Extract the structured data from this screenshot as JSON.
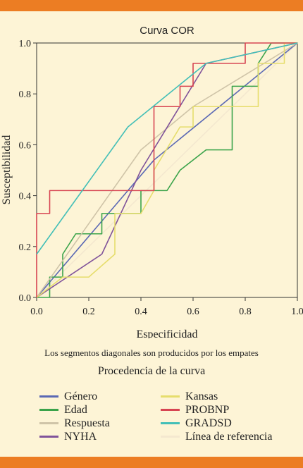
{
  "chart_data": {
    "type": "line",
    "title": "Curva COR",
    "xlabel": "Especificidad",
    "ylabel": "Susceptibilidad",
    "xlim": [
      0,
      1
    ],
    "ylim": [
      0,
      1
    ],
    "x_ticks": [
      "0.0",
      "0.2",
      "0.4",
      "0.6",
      "0.8",
      "1.0"
    ],
    "y_ticks": [
      "0.0",
      "0.2",
      "0.4",
      "0.6",
      "0.8",
      "1.0"
    ],
    "note": "Los segmentos diagonales son producidos por los empates",
    "legend_title": "Procedencia de la curva",
    "legend_placement": "bottom",
    "series": [
      {
        "name": "Género",
        "color": "#5a68b4",
        "x": [
          0,
          0.45,
          1.0
        ],
        "y": [
          0,
          0.54,
          1.0
        ]
      },
      {
        "name": "Edad",
        "color": "#3aa34a",
        "x": [
          0,
          0.05,
          0.05,
          0.1,
          0.1,
          0.15,
          0.25,
          0.25,
          0.4,
          0.4,
          0.5,
          0.55,
          0.65,
          0.75,
          0.75,
          0.85,
          0.85,
          0.9,
          1.0
        ],
        "y": [
          0,
          0,
          0.08,
          0.08,
          0.17,
          0.25,
          0.25,
          0.33,
          0.33,
          0.42,
          0.42,
          0.5,
          0.58,
          0.58,
          0.83,
          0.83,
          0.92,
          1.0,
          1.0
        ]
      },
      {
        "name": "Respuesta",
        "color": "#cfc4a8",
        "x": [
          0,
          0.4,
          0.6,
          1.0
        ],
        "y": [
          0,
          0.58,
          0.75,
          1.0
        ]
      },
      {
        "name": "NYHA",
        "color": "#80539a",
        "x": [
          0,
          0.25,
          0.4,
          0.65,
          1.0
        ],
        "y": [
          0,
          0.17,
          0.5,
          0.92,
          1.0
        ]
      },
      {
        "name": "Kansas",
        "color": "#e6dd6c",
        "x": [
          0,
          0.1,
          0.2,
          0.3,
          0.3,
          0.4,
          0.45,
          0.45,
          0.55,
          0.6,
          0.6,
          0.65,
          0.85,
          0.85,
          0.95,
          0.95,
          1.0
        ],
        "y": [
          0,
          0.08,
          0.08,
          0.17,
          0.33,
          0.33,
          0.42,
          0.5,
          0.67,
          0.67,
          0.75,
          0.75,
          0.75,
          0.92,
          0.92,
          1.0,
          1.0
        ]
      },
      {
        "name": "PROBNP",
        "color": "#d74452",
        "x": [
          0,
          0,
          0.05,
          0.05,
          0.45,
          0.45,
          0.55,
          0.55,
          0.6,
          0.6,
          0.8,
          0.8,
          1.0
        ],
        "y": [
          0,
          0.33,
          0.33,
          0.42,
          0.42,
          0.75,
          0.75,
          0.83,
          0.83,
          0.92,
          0.92,
          1.0,
          1.0
        ]
      },
      {
        "name": "GRADSD",
        "color": "#43bfb7",
        "x": [
          0,
          0.35,
          0.65,
          1.0
        ],
        "y": [
          0.17,
          0.67,
          0.92,
          1.0
        ]
      },
      {
        "name": "Línea de referencia",
        "color": "#f4e8cf",
        "x": [
          0,
          1.0
        ],
        "y": [
          0,
          1.0
        ]
      }
    ]
  }
}
